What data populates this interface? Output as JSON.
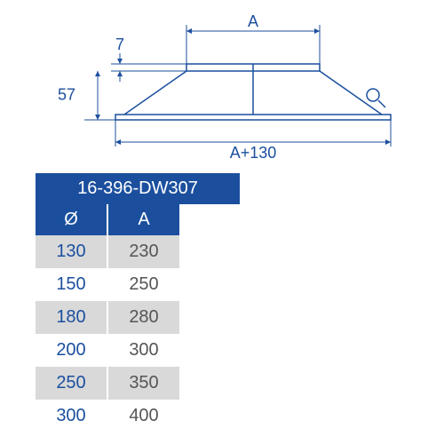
{
  "colors": {
    "brand_blue": "#1b4f9e",
    "header_blue": "#1b4f9e",
    "row_alt_bg": "#d9d9d9",
    "row_bg": "#ffffff",
    "dia_text": "#1b4f9e",
    "a_text": "#555555",
    "diagram_stroke": "#1b4f9e",
    "diagram_fill": "#ffffff"
  },
  "diagram": {
    "dim_height_total": "57",
    "dim_height_lip": "7",
    "dim_top": "A",
    "dim_bottom": "A+130",
    "fontsize": 18,
    "stroke_width": 1.5
  },
  "table": {
    "product_code": "16-396-DW307",
    "columns": {
      "dia": "Ø",
      "a": "A"
    },
    "rows": [
      {
        "dia": "130",
        "a": "230"
      },
      {
        "dia": "150",
        "a": "250"
      },
      {
        "dia": "180",
        "a": "280"
      },
      {
        "dia": "200",
        "a": "300"
      },
      {
        "dia": "250",
        "a": "350"
      },
      {
        "dia": "300",
        "a": "400"
      }
    ],
    "header_fontsize": 20,
    "cell_fontsize": 20
  }
}
